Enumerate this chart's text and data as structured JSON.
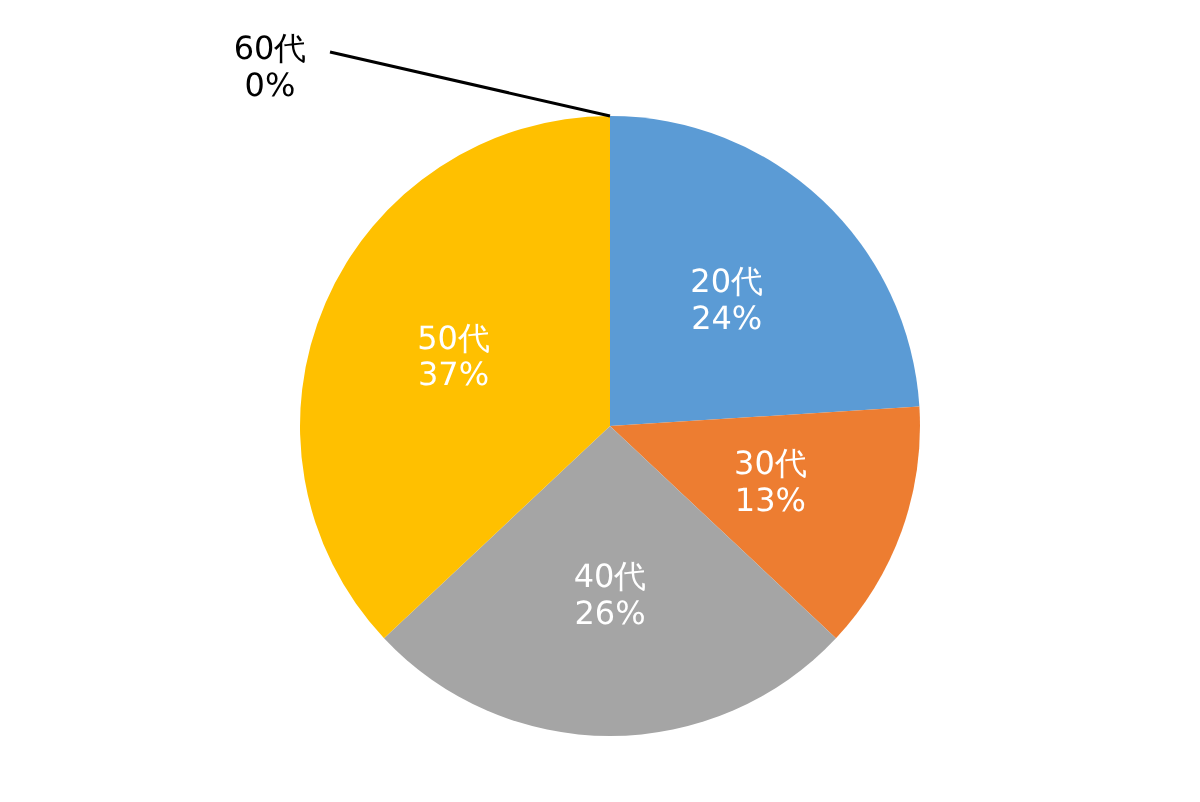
{
  "chart_data": {
    "type": "pie",
    "categories": [
      "20代",
      "30代",
      "40代",
      "50代",
      "60代"
    ],
    "values": [
      24,
      13,
      26,
      37,
      0
    ],
    "value_labels": [
      "24%",
      "13%",
      "26%",
      "37%",
      "0%"
    ],
    "colors": [
      "#5b9bd5",
      "#ed7d31",
      "#a5a5a5",
      "#ffc000",
      "#8a6fb0"
    ]
  }
}
